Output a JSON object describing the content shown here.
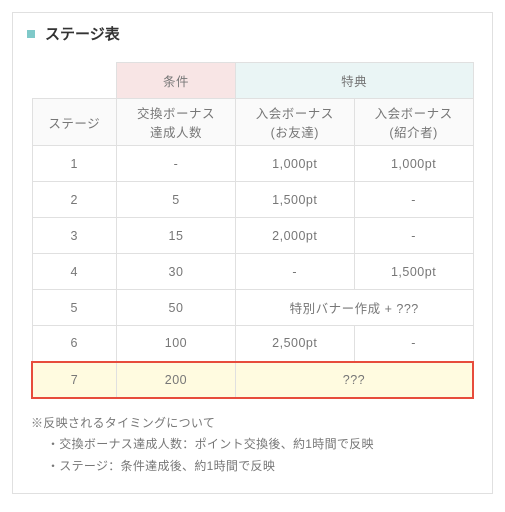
{
  "title": "ステージ表",
  "headers": {
    "stage": "ステージ",
    "condition_group": "条件",
    "condition_sub": "交換ボーナス\n達成人数",
    "perk_group": "特典",
    "perk_friend": "入会ボーナス\n(お友達)",
    "perk_referrer": "入会ボーナス\n(紹介者)"
  },
  "rows": [
    {
      "stage": "1",
      "cond": "-",
      "friend": "1,000pt",
      "ref": "1,000pt"
    },
    {
      "stage": "2",
      "cond": "5",
      "friend": "1,500pt",
      "ref": "-"
    },
    {
      "stage": "3",
      "cond": "15",
      "friend": "2,000pt",
      "ref": "-"
    },
    {
      "stage": "4",
      "cond": "30",
      "friend": "-",
      "ref": "1,500pt"
    },
    {
      "stage": "5",
      "cond": "50",
      "merged": "特別バナー作成 + ???"
    },
    {
      "stage": "6",
      "cond": "100",
      "friend": "2,500pt",
      "ref": "-"
    },
    {
      "stage": "7",
      "cond": "200",
      "merged": "???",
      "highlight": true
    }
  ],
  "notes": {
    "heading": "※反映されるタイミングについて",
    "line1": "・交換ボーナス達成人数：ポイント交換後、約1時間で反映",
    "line2": "・ステージ：条件達成後、約1時間で反映"
  },
  "colors": {
    "bullet": "#7fc9c9",
    "cond_bg": "#f8e5e5",
    "perk_bg": "#eaf5f5",
    "highlight_bg": "#fffbe0",
    "highlight_border": "#e74c3c",
    "border": "#e0e0e0"
  }
}
